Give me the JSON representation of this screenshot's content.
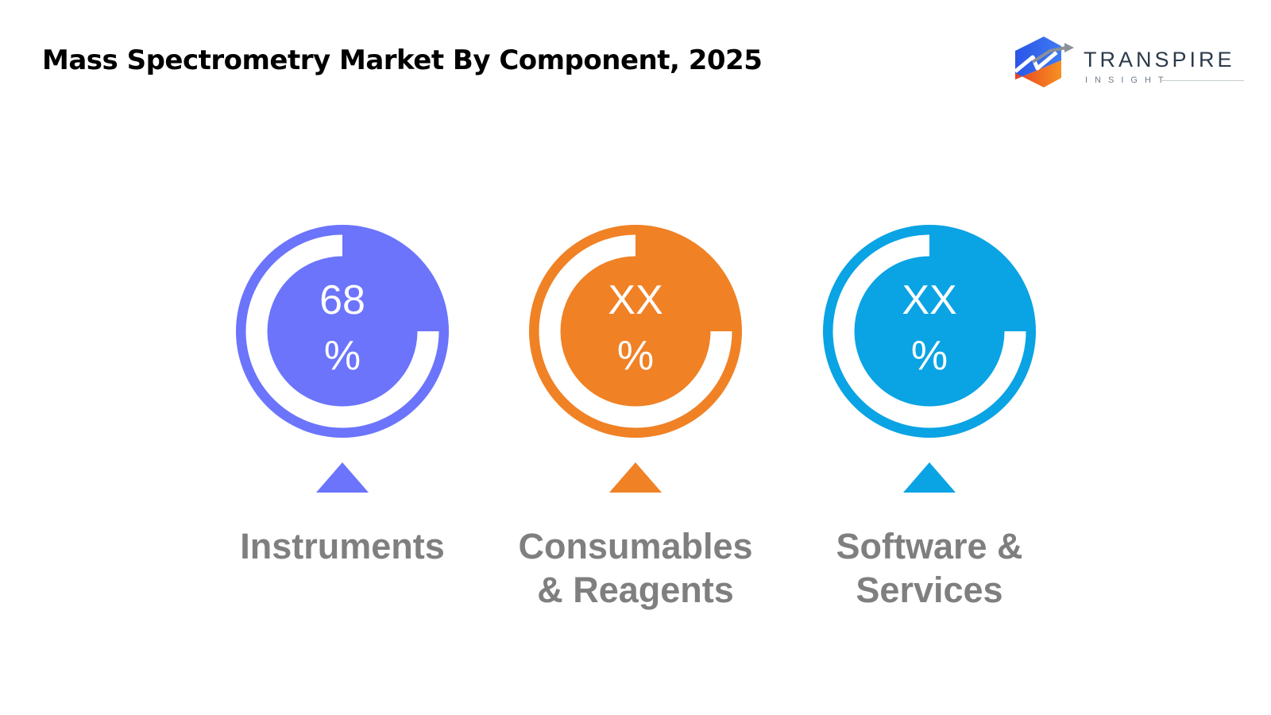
{
  "title": "Mass Spectrometry Market By Component, 2025",
  "logo": {
    "word": "TRANSPIRE",
    "sub": "INSIGHT"
  },
  "chart_data": {
    "type": "pie",
    "categories": [
      {
        "name": "Instruments",
        "line1": "Instruments",
        "line2": "",
        "value_text": "68",
        "unit": "%",
        "value": 68,
        "color": "#6B74FB"
      },
      {
        "name": "Consumables & Reagents",
        "line1": "Consumables",
        "line2": "& Reagents",
        "value_text": "XX",
        "unit": "%",
        "value": null,
        "color": "#F08125"
      },
      {
        "name": "Software & Services",
        "line1": "Software &",
        "line2": "Services",
        "value_text": "XX",
        "unit": "%",
        "value": null,
        "color": "#0AA3E4"
      }
    ]
  }
}
